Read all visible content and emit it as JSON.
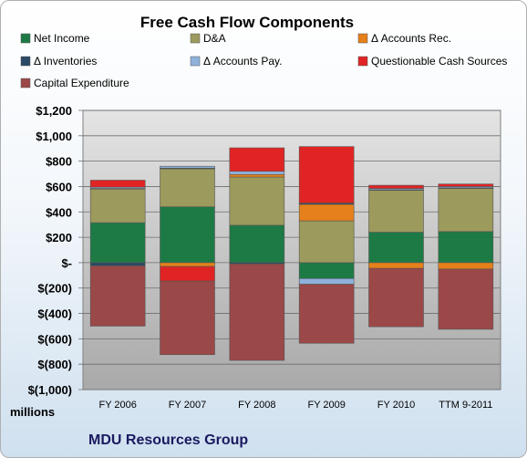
{
  "chart_data": {
    "type": "bar",
    "stacked": true,
    "title": "Free Cash Flow Components",
    "ylabel": "millions",
    "ylim": [
      -1000,
      1200
    ],
    "y_ticks": [
      "$1,200",
      "$1,000",
      "$800",
      "$600",
      "$400",
      "$200",
      "$-",
      "$(200)",
      "$(400)",
      "$(600)",
      "$(800)",
      "$(1,000)"
    ],
    "grid": true,
    "legend_position": "top",
    "categories": [
      "FY 2006",
      "FY 2007",
      "FY 2008",
      "FY 2009",
      "FY 2010",
      "TTM 9-2011"
    ],
    "series": [
      {
        "name": "Net Income",
        "color": "#1e7a45",
        "values": [
          315,
          440,
          295,
          -125,
          240,
          245
        ]
      },
      {
        "name": "D&A",
        "color": "#9c9a5c",
        "values": [
          265,
          300,
          380,
          330,
          330,
          340
        ]
      },
      {
        "name": "Δ Accounts Rec.",
        "color": "#e6801a",
        "values": [
          5,
          -30,
          20,
          130,
          -45,
          -50
        ]
      },
      {
        "name": "Δ Inventories",
        "color": "#2b4a66",
        "values": [
          -25,
          5,
          -10,
          10,
          5,
          5
        ]
      },
      {
        "name": "Δ Accounts Pay.",
        "color": "#8fb2dc",
        "values": [
          10,
          15,
          25,
          -45,
          10,
          10
        ]
      },
      {
        "name": "Questionable Cash Sources",
        "color": "#e02424",
        "values": [
          55,
          -115,
          185,
          445,
          25,
          20
        ]
      },
      {
        "name": "Capital Expenditure",
        "color": "#9b4848",
        "values": [
          -475,
          -580,
          -760,
          -465,
          -460,
          -475
        ]
      }
    ]
  },
  "footer": {
    "company": "MDU Resources Group"
  }
}
